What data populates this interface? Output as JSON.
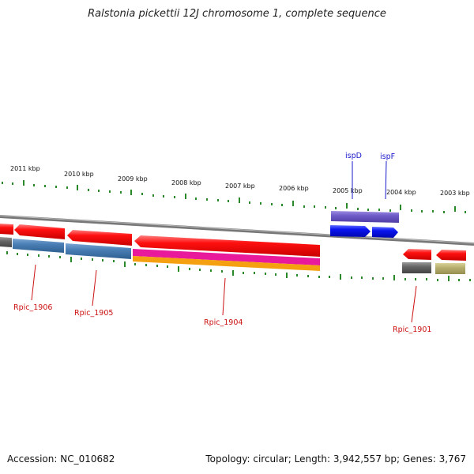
{
  "title": "Ralstonia pickettii 12J chromosome 1, complete sequence",
  "footer": {
    "accession": "Accession: NC_010682",
    "summary": "Topology: circular; Length: 3,942,557 bp; Genes: 3,767"
  },
  "ticks": [
    {
      "label": "2011 kbp"
    },
    {
      "label": "2010 kbp"
    },
    {
      "label": "2009 kbp"
    },
    {
      "label": "2008 kbp"
    },
    {
      "label": "2007 kbp"
    },
    {
      "label": "2006 kbp"
    },
    {
      "label": "2005 kbp"
    },
    {
      "label": "2004 kbp"
    },
    {
      "label": "2003 kbp"
    }
  ],
  "gene_labels": [
    {
      "name": "ispD",
      "color": "#1a1acc"
    },
    {
      "name": "ispF",
      "color": "#1a1acc"
    },
    {
      "name": "Rpic_1906",
      "color": "#cc1111"
    },
    {
      "name": "Rpic_1905",
      "color": "#cc1111"
    },
    {
      "name": "Rpic_1904",
      "color": "#cc1111"
    },
    {
      "name": "Rpic_1901",
      "color": "#cc1111"
    }
  ],
  "colors": {
    "gene_red": "#ee1111",
    "gene_blue": "#0a14f0",
    "gene_steel": "#4a7fb5",
    "gene_purple": "#6f5bc8",
    "gene_magenta": "#e8199a",
    "gene_orange": "#f5a010",
    "gene_gray": "#666666",
    "gene_khaki": "#b8b070",
    "tick_green": "#2a8a2a",
    "backbone": "#888888"
  }
}
